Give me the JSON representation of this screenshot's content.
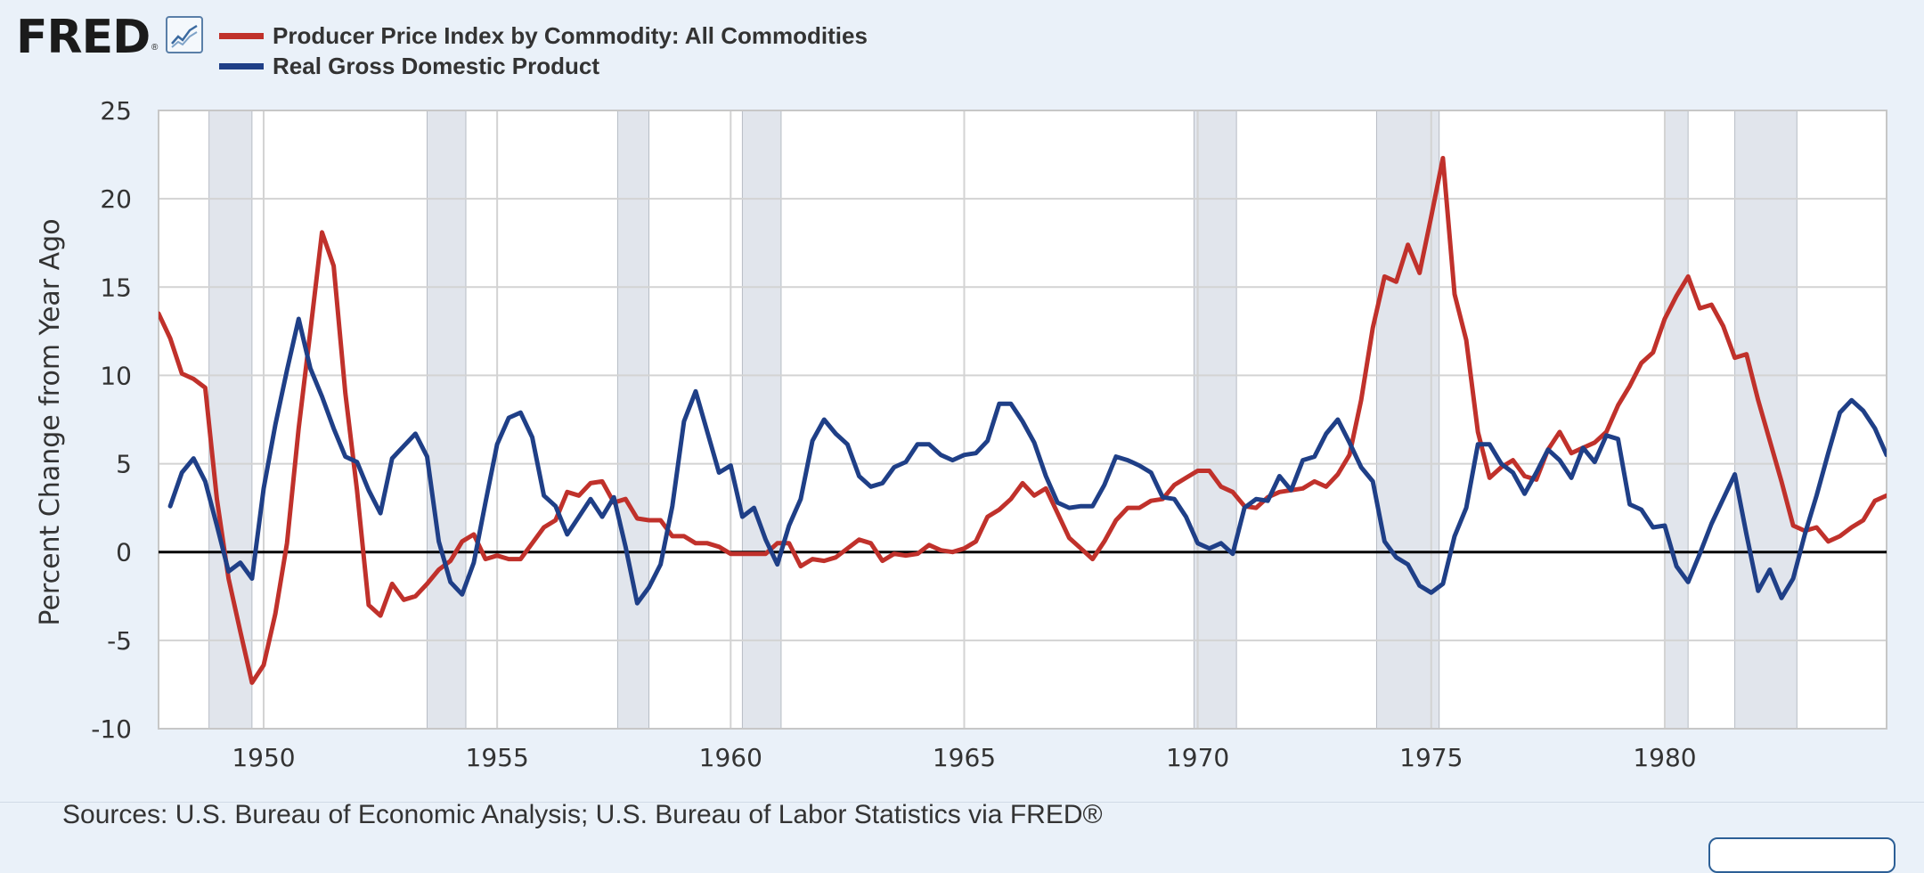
{
  "logo": {
    "text": "FRED"
  },
  "legend": [
    {
      "label": "Producer Price Index by Commodity: All Commodities",
      "color": "#c0312b"
    },
    {
      "label": "Real Gross Domestic Product",
      "color": "#1f3f87"
    }
  ],
  "source_note": "Sources: U.S. Bureau of Economic Analysis; U.S. Bureau of Labor Statistics via FRED®",
  "chart_data": {
    "type": "line",
    "title": "",
    "ylabel": "Percent Change from Year Ago",
    "xlabel": "",
    "ylim": [
      -10,
      25
    ],
    "yticks": [
      25,
      20,
      15,
      10,
      5,
      0,
      -5,
      -10
    ],
    "xlim": [
      1947.75,
      1984.75
    ],
    "xticks": [
      1950,
      1955,
      1960,
      1965,
      1970,
      1975,
      1980
    ],
    "grid": true,
    "zero_line": true,
    "legend_position": "top-left",
    "recessions": [
      [
        1948.83,
        1949.75
      ],
      [
        1953.5,
        1954.33
      ],
      [
        1957.58,
        1958.25
      ],
      [
        1960.25,
        1961.08
      ],
      [
        1969.92,
        1970.83
      ],
      [
        1973.83,
        1975.17
      ],
      [
        1980.0,
        1980.5
      ],
      [
        1981.5,
        1982.83
      ]
    ],
    "series": [
      {
        "name": "Producer Price Index by Commodity: All Commodities",
        "color": "#c0312b",
        "points": [
          [
            1947.75,
            13.5
          ],
          [
            1948.0,
            12.1
          ],
          [
            1948.25,
            10.1
          ],
          [
            1948.5,
            9.8
          ],
          [
            1948.75,
            9.3
          ],
          [
            1949.0,
            3.0
          ],
          [
            1949.25,
            -1.5
          ],
          [
            1949.5,
            -4.5
          ],
          [
            1949.75,
            -7.4
          ],
          [
            1950.0,
            -6.4
          ],
          [
            1950.25,
            -3.5
          ],
          [
            1950.5,
            0.5
          ],
          [
            1950.75,
            7.0
          ],
          [
            1951.0,
            12.5
          ],
          [
            1951.25,
            18.1
          ],
          [
            1951.5,
            16.2
          ],
          [
            1951.75,
            9.0
          ],
          [
            1952.0,
            3.5
          ],
          [
            1952.25,
            -3.0
          ],
          [
            1952.5,
            -3.6
          ],
          [
            1952.75,
            -1.8
          ],
          [
            1953.0,
            -2.7
          ],
          [
            1953.25,
            -2.5
          ],
          [
            1953.5,
            -1.8
          ],
          [
            1953.75,
            -1.0
          ],
          [
            1954.0,
            -0.5
          ],
          [
            1954.25,
            0.6
          ],
          [
            1954.5,
            1.0
          ],
          [
            1954.75,
            -0.4
          ],
          [
            1955.0,
            -0.2
          ],
          [
            1955.25,
            -0.4
          ],
          [
            1955.5,
            -0.4
          ],
          [
            1955.75,
            0.5
          ],
          [
            1956.0,
            1.4
          ],
          [
            1956.25,
            1.8
          ],
          [
            1956.5,
            3.4
          ],
          [
            1956.75,
            3.2
          ],
          [
            1957.0,
            3.9
          ],
          [
            1957.25,
            4.0
          ],
          [
            1957.5,
            2.8
          ],
          [
            1957.75,
            3.0
          ],
          [
            1958.0,
            1.9
          ],
          [
            1958.25,
            1.8
          ],
          [
            1958.5,
            1.8
          ],
          [
            1958.75,
            0.9
          ],
          [
            1959.0,
            0.9
          ],
          [
            1959.25,
            0.5
          ],
          [
            1959.5,
            0.5
          ],
          [
            1959.75,
            0.3
          ],
          [
            1960.0,
            -0.1
          ],
          [
            1960.25,
            -0.1
          ],
          [
            1960.5,
            -0.1
          ],
          [
            1960.75,
            -0.1
          ],
          [
            1961.0,
            0.5
          ],
          [
            1961.25,
            0.5
          ],
          [
            1961.5,
            -0.8
          ],
          [
            1961.75,
            -0.4
          ],
          [
            1962.0,
            -0.5
          ],
          [
            1962.25,
            -0.3
          ],
          [
            1962.5,
            0.2
          ],
          [
            1962.75,
            0.7
          ],
          [
            1963.0,
            0.5
          ],
          [
            1963.25,
            -0.5
          ],
          [
            1963.5,
            -0.1
          ],
          [
            1963.75,
            -0.2
          ],
          [
            1964.0,
            -0.1
          ],
          [
            1964.25,
            0.4
          ],
          [
            1964.5,
            0.1
          ],
          [
            1964.75,
            0.0
          ],
          [
            1965.0,
            0.2
          ],
          [
            1965.25,
            0.6
          ],
          [
            1965.5,
            2.0
          ],
          [
            1965.75,
            2.4
          ],
          [
            1966.0,
            3.0
          ],
          [
            1966.25,
            3.9
          ],
          [
            1966.5,
            3.2
          ],
          [
            1966.75,
            3.6
          ],
          [
            1967.0,
            2.2
          ],
          [
            1967.25,
            0.8
          ],
          [
            1967.5,
            0.2
          ],
          [
            1967.75,
            -0.4
          ],
          [
            1968.0,
            0.6
          ],
          [
            1968.25,
            1.8
          ],
          [
            1968.5,
            2.5
          ],
          [
            1968.75,
            2.5
          ],
          [
            1969.0,
            2.9
          ],
          [
            1969.25,
            3.0
          ],
          [
            1969.5,
            3.8
          ],
          [
            1969.75,
            4.2
          ],
          [
            1970.0,
            4.6
          ],
          [
            1970.25,
            4.6
          ],
          [
            1970.5,
            3.7
          ],
          [
            1970.75,
            3.4
          ],
          [
            1971.0,
            2.6
          ],
          [
            1971.25,
            2.5
          ],
          [
            1971.5,
            3.1
          ],
          [
            1971.75,
            3.4
          ],
          [
            1972.0,
            3.5
          ],
          [
            1972.25,
            3.6
          ],
          [
            1972.5,
            4.0
          ],
          [
            1972.75,
            3.7
          ],
          [
            1973.0,
            4.4
          ],
          [
            1973.25,
            5.5
          ],
          [
            1973.5,
            8.6
          ],
          [
            1973.75,
            12.7
          ],
          [
            1974.0,
            15.6
          ],
          [
            1974.25,
            15.3
          ],
          [
            1974.5,
            17.4
          ],
          [
            1974.75,
            15.8
          ],
          [
            1975.0,
            19.0
          ],
          [
            1975.25,
            22.3
          ],
          [
            1975.5,
            14.6
          ],
          [
            1975.75,
            12.0
          ],
          [
            1976.0,
            6.8
          ],
          [
            1976.25,
            4.2
          ],
          [
            1976.5,
            4.8
          ],
          [
            1976.75,
            5.2
          ],
          [
            1977.0,
            4.3
          ],
          [
            1977.25,
            4.1
          ],
          [
            1977.5,
            5.8
          ],
          [
            1977.75,
            6.8
          ],
          [
            1978.0,
            5.6
          ],
          [
            1978.25,
            5.9
          ],
          [
            1978.5,
            6.2
          ],
          [
            1978.75,
            6.8
          ],
          [
            1979.0,
            8.3
          ],
          [
            1979.25,
            9.4
          ],
          [
            1979.5,
            10.7
          ],
          [
            1979.75,
            11.3
          ],
          [
            1980.0,
            13.2
          ],
          [
            1980.25,
            14.5
          ],
          [
            1980.5,
            15.6
          ],
          [
            1980.75,
            13.8
          ],
          [
            1981.0,
            14.0
          ],
          [
            1981.25,
            12.8
          ],
          [
            1981.5,
            11.0
          ],
          [
            1981.75,
            11.2
          ],
          [
            1982.0,
            8.6
          ],
          [
            1982.25,
            6.3
          ],
          [
            1982.5,
            4.0
          ],
          [
            1982.75,
            1.5
          ],
          [
            1983.0,
            1.2
          ],
          [
            1983.25,
            1.4
          ],
          [
            1983.5,
            0.6
          ],
          [
            1983.75,
            0.9
          ],
          [
            1984.0,
            1.4
          ],
          [
            1984.25,
            1.8
          ],
          [
            1984.5,
            2.9
          ],
          [
            1984.75,
            3.2
          ]
        ]
      },
      {
        "name": "Real Gross Domestic Product",
        "color": "#1f3f87",
        "points": [
          [
            1948.0,
            2.6
          ],
          [
            1948.25,
            4.5
          ],
          [
            1948.5,
            5.3
          ],
          [
            1948.75,
            4.0
          ],
          [
            1949.0,
            1.5
          ],
          [
            1949.25,
            -1.1
          ],
          [
            1949.5,
            -0.6
          ],
          [
            1949.75,
            -1.5
          ],
          [
            1950.0,
            3.6
          ],
          [
            1950.25,
            7.2
          ],
          [
            1950.5,
            10.3
          ],
          [
            1950.75,
            13.2
          ],
          [
            1951.0,
            10.4
          ],
          [
            1951.25,
            8.8
          ],
          [
            1951.5,
            7.0
          ],
          [
            1951.75,
            5.4
          ],
          [
            1952.0,
            5.1
          ],
          [
            1952.25,
            3.5
          ],
          [
            1952.5,
            2.2
          ],
          [
            1952.75,
            5.3
          ],
          [
            1953.0,
            6.0
          ],
          [
            1953.25,
            6.7
          ],
          [
            1953.5,
            5.4
          ],
          [
            1953.75,
            0.6
          ],
          [
            1954.0,
            -1.7
          ],
          [
            1954.25,
            -2.4
          ],
          [
            1954.5,
            -0.6
          ],
          [
            1954.75,
            2.8
          ],
          [
            1955.0,
            6.1
          ],
          [
            1955.25,
            7.6
          ],
          [
            1955.5,
            7.9
          ],
          [
            1955.75,
            6.5
          ],
          [
            1956.0,
            3.2
          ],
          [
            1956.25,
            2.6
          ],
          [
            1956.5,
            1.0
          ],
          [
            1956.75,
            2.0
          ],
          [
            1957.0,
            3.0
          ],
          [
            1957.25,
            2.0
          ],
          [
            1957.5,
            3.1
          ],
          [
            1957.75,
            0.3
          ],
          [
            1958.0,
            -2.9
          ],
          [
            1958.25,
            -2.0
          ],
          [
            1958.5,
            -0.7
          ],
          [
            1958.75,
            2.6
          ],
          [
            1959.0,
            7.4
          ],
          [
            1959.25,
            9.1
          ],
          [
            1959.5,
            6.8
          ],
          [
            1959.75,
            4.5
          ],
          [
            1960.0,
            4.9
          ],
          [
            1960.25,
            2.0
          ],
          [
            1960.5,
            2.5
          ],
          [
            1960.75,
            0.7
          ],
          [
            1961.0,
            -0.7
          ],
          [
            1961.25,
            1.5
          ],
          [
            1961.5,
            3.0
          ],
          [
            1961.75,
            6.3
          ],
          [
            1962.0,
            7.5
          ],
          [
            1962.25,
            6.7
          ],
          [
            1962.5,
            6.1
          ],
          [
            1962.75,
            4.3
          ],
          [
            1963.0,
            3.7
          ],
          [
            1963.25,
            3.9
          ],
          [
            1963.5,
            4.8
          ],
          [
            1963.75,
            5.1
          ],
          [
            1964.0,
            6.1
          ],
          [
            1964.25,
            6.1
          ],
          [
            1964.5,
            5.5
          ],
          [
            1964.75,
            5.2
          ],
          [
            1965.0,
            5.5
          ],
          [
            1965.25,
            5.6
          ],
          [
            1965.5,
            6.3
          ],
          [
            1965.75,
            8.4
          ],
          [
            1966.0,
            8.4
          ],
          [
            1966.25,
            7.4
          ],
          [
            1966.5,
            6.2
          ],
          [
            1966.75,
            4.3
          ],
          [
            1967.0,
            2.8
          ],
          [
            1967.25,
            2.5
          ],
          [
            1967.5,
            2.6
          ],
          [
            1967.75,
            2.6
          ],
          [
            1968.0,
            3.8
          ],
          [
            1968.25,
            5.4
          ],
          [
            1968.5,
            5.2
          ],
          [
            1968.75,
            4.9
          ],
          [
            1969.0,
            4.5
          ],
          [
            1969.25,
            3.1
          ],
          [
            1969.5,
            3.0
          ],
          [
            1969.75,
            2.0
          ],
          [
            1970.0,
            0.5
          ],
          [
            1970.25,
            0.2
          ],
          [
            1970.5,
            0.5
          ],
          [
            1970.75,
            -0.1
          ],
          [
            1971.0,
            2.5
          ],
          [
            1971.25,
            3.0
          ],
          [
            1971.5,
            2.9
          ],
          [
            1971.75,
            4.3
          ],
          [
            1972.0,
            3.5
          ],
          [
            1972.25,
            5.2
          ],
          [
            1972.5,
            5.4
          ],
          [
            1972.75,
            6.7
          ],
          [
            1973.0,
            7.5
          ],
          [
            1973.25,
            6.2
          ],
          [
            1973.5,
            4.8
          ],
          [
            1973.75,
            4.0
          ],
          [
            1974.0,
            0.6
          ],
          [
            1974.25,
            -0.3
          ],
          [
            1974.5,
            -0.7
          ],
          [
            1974.75,
            -1.9
          ],
          [
            1975.0,
            -2.3
          ],
          [
            1975.25,
            -1.8
          ],
          [
            1975.5,
            0.9
          ],
          [
            1975.75,
            2.5
          ],
          [
            1976.0,
            6.1
          ],
          [
            1976.25,
            6.1
          ],
          [
            1976.5,
            5.0
          ],
          [
            1976.75,
            4.5
          ],
          [
            1977.0,
            3.3
          ],
          [
            1977.25,
            4.5
          ],
          [
            1977.5,
            5.8
          ],
          [
            1977.75,
            5.2
          ],
          [
            1978.0,
            4.2
          ],
          [
            1978.25,
            5.9
          ],
          [
            1978.5,
            5.1
          ],
          [
            1978.75,
            6.6
          ],
          [
            1979.0,
            6.4
          ],
          [
            1979.25,
            2.7
          ],
          [
            1979.5,
            2.4
          ],
          [
            1979.75,
            1.4
          ],
          [
            1980.0,
            1.5
          ],
          [
            1980.25,
            -0.8
          ],
          [
            1980.5,
            -1.7
          ],
          [
            1980.75,
            -0.1
          ],
          [
            1981.0,
            1.6
          ],
          [
            1981.25,
            3.0
          ],
          [
            1981.5,
            4.4
          ],
          [
            1981.75,
            1.0
          ],
          [
            1982.0,
            -2.2
          ],
          [
            1982.25,
            -1.0
          ],
          [
            1982.5,
            -2.6
          ],
          [
            1982.75,
            -1.5
          ],
          [
            1983.0,
            1.0
          ],
          [
            1983.25,
            3.2
          ],
          [
            1983.5,
            5.6
          ],
          [
            1983.75,
            7.9
          ],
          [
            1984.0,
            8.6
          ],
          [
            1984.25,
            8.0
          ],
          [
            1984.5,
            7.0
          ],
          [
            1984.75,
            5.5
          ]
        ]
      }
    ]
  }
}
